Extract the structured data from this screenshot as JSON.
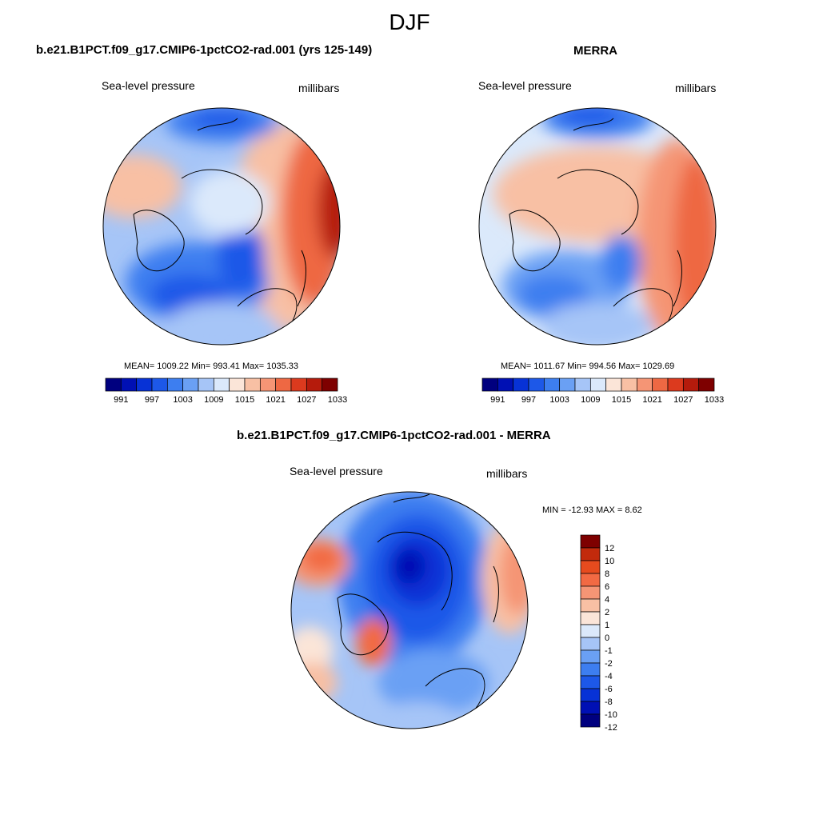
{
  "figure": {
    "title": "DJF"
  },
  "palettes": {
    "abs": [
      "#00007f",
      "#0010b4",
      "#0732d6",
      "#1d58e8",
      "#3d7ef0",
      "#6aa0f4",
      "#a6c5f7",
      "#dbe9fb",
      "#fbe5d8",
      "#f8c0a4",
      "#f59575",
      "#ee6843",
      "#dc3a1e",
      "#b51b0c",
      "#7e0000"
    ],
    "diff": [
      "#00007f",
      "#0010b4",
      "#0732d6",
      "#1d58e8",
      "#3d7ef0",
      "#6aa0f4",
      "#a6c5f7",
      "#dbe9fb",
      "#fbe5d8",
      "#f8c0a4",
      "#f59575",
      "#f26a43",
      "#e64b1e",
      "#c22a0c",
      "#7e0000"
    ]
  },
  "maps": {
    "left": {
      "title": "b.e21.B1PCT.f09_g17.CMIP6-1pctCO2-rad.001 (yrs 125-149)",
      "variable": "Sea-level pressure",
      "units": "millibars",
      "stats": "MEAN= 1009.22  Min= 993.41  Max= 1035.33",
      "colorbar_labels": [
        "991",
        "997",
        "1003",
        "1009",
        "1015",
        "1021",
        "1027",
        "1033"
      ]
    },
    "right": {
      "title": "MERRA",
      "variable": "Sea-level pressure",
      "units": "millibars",
      "stats": "MEAN= 1011.67  Min= 994.56  Max= 1029.69",
      "colorbar_labels": [
        "991",
        "997",
        "1003",
        "1009",
        "1015",
        "1021",
        "1027",
        "1033"
      ]
    },
    "diff": {
      "title": "b.e21.B1PCT.f09_g17.CMIP6-1pctCO2-rad.001 - MERRA",
      "variable": "Sea-level pressure",
      "units": "millibars",
      "stats": "MIN = -12.93 MAX =   8.62",
      "colorbar_labels": [
        "12",
        "10",
        "8",
        "6",
        "4",
        "2",
        "1",
        "0",
        "-1",
        "-2",
        "-4",
        "-6",
        "-8",
        "-10",
        "-12"
      ]
    }
  }
}
